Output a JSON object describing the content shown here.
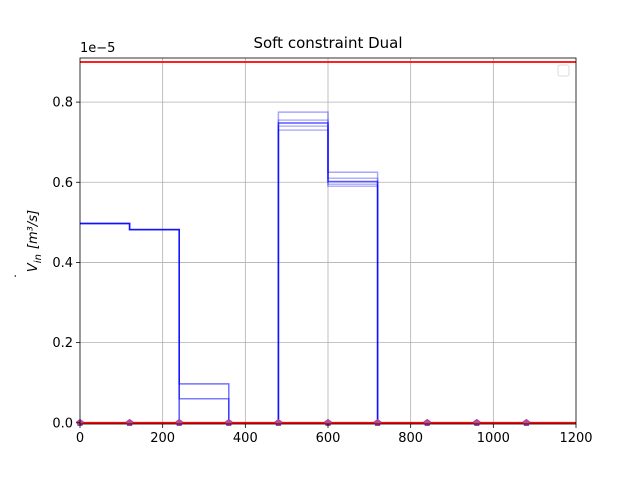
{
  "chart_data": {
    "type": "line",
    "title": "Soft constraint Dual",
    "xlabel": "",
    "ylabel_base": "V",
    "ylabel_sub": "in",
    "ylabel_unit": "[m³/s]",
    "y_multiplier": "1e−5",
    "xlim": [
      0,
      1200
    ],
    "ylim": [
      -0.003,
      0.91
    ],
    "x_ticks": [
      0,
      200,
      400,
      600,
      800,
      1000,
      1200
    ],
    "x_tick_labels": [
      "0",
      "200",
      "400",
      "600",
      "800",
      "1000",
      "1200"
    ],
    "y_ticks": [
      0.0,
      0.2,
      0.4,
      0.6,
      0.8
    ],
    "y_tick_labels": [
      "0.0",
      "0.2",
      "0.4",
      "0.6",
      "0.8"
    ],
    "grid": true,
    "legend": "top-right, empty",
    "colors": {
      "series": "#0000ff",
      "bound": "#ff0000",
      "marker": "#cc4488",
      "grid": "#b0b0b0"
    },
    "upper_bound": 0.9,
    "lower_bound": 0.0,
    "step_edges": [
      0,
      120,
      240,
      360,
      480,
      600,
      720,
      840,
      960,
      1080,
      1200
    ],
    "series": [
      {
        "opacity": 0.65,
        "values": [
          0.497,
          0.482,
          0.0,
          0.0,
          0.748,
          0.602,
          0.0,
          0.0,
          0.0,
          0.0
        ]
      },
      {
        "opacity": 0.35,
        "values": [
          0.497,
          0.482,
          0.097,
          0.0,
          0.775,
          0.625,
          0.0,
          0.0,
          0.0,
          0.0
        ]
      },
      {
        "opacity": 0.3,
        "values": [
          0.497,
          0.482,
          0.06,
          0.0,
          0.74,
          0.595,
          0.0,
          0.0,
          0.0,
          0.0
        ]
      },
      {
        "opacity": 0.3,
        "values": [
          0.497,
          0.482,
          0.06,
          0.0,
          0.73,
          0.59,
          0.0,
          0.0,
          0.0,
          0.0
        ]
      },
      {
        "opacity": 0.3,
        "values": [
          0.497,
          0.482,
          0.097,
          0.0,
          0.755,
          0.61,
          0.0,
          0.0,
          0.0,
          0.0
        ]
      }
    ],
    "markers": {
      "x": [
        0,
        120,
        240,
        360,
        480,
        600,
        720,
        840,
        960,
        1080
      ],
      "y": [
        0,
        0,
        0,
        0,
        0,
        0,
        0,
        0,
        0,
        0
      ]
    }
  }
}
